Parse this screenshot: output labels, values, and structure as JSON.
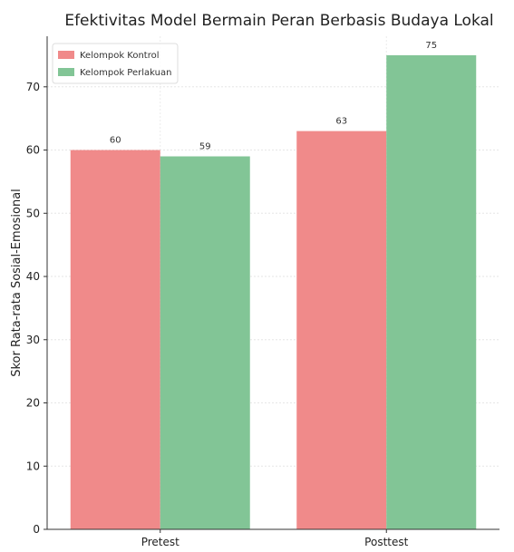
{
  "chart_data": {
    "type": "bar",
    "title": "Efektivitas Model Bermain Peran Berbasis Budaya Lokal",
    "xlabel": "",
    "ylabel": "Skor Rata-rata Sosial-Emosional",
    "categories": [
      "Pretest",
      "Posttest"
    ],
    "series": [
      {
        "name": "Kelompok Kontrol",
        "values": [
          60,
          63
        ],
        "color": "#f08a8a"
      },
      {
        "name": "Kelompok Perlakuan",
        "values": [
          59,
          75
        ],
        "color": "#82c596"
      }
    ],
    "ylim": [
      0,
      78
    ],
    "yticks": [
      0,
      10,
      20,
      30,
      40,
      50,
      60,
      70
    ],
    "grid": true,
    "legend_position": "top-left"
  }
}
